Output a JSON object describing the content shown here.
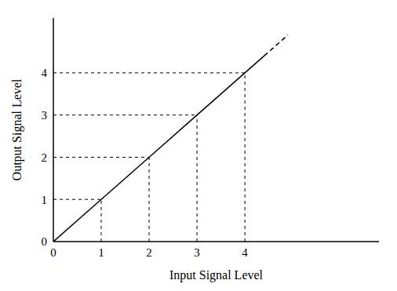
{
  "chart_data": {
    "type": "line",
    "x_label": "Input Signal Level",
    "y_label": "Output Signal Level",
    "x": [
      0,
      1,
      2,
      3,
      4,
      4.4,
      4.9
    ],
    "series": [
      {
        "values": [
          0,
          1,
          2,
          3,
          4,
          4.4,
          null
        ],
        "color": "#000000",
        "line_style": "solid"
      },
      {
        "values": [
          null,
          null,
          null,
          null,
          null,
          4.4,
          4.9
        ],
        "color": "#000000",
        "line_style": "dashed"
      }
    ],
    "xlim": [
      0,
      6.8
    ],
    "ylim": [
      0,
      5.3
    ],
    "xticks": [
      0,
      1,
      2,
      3,
      4
    ],
    "yticks": [
      0,
      1,
      2,
      3,
      4
    ],
    "grid": false
  }
}
